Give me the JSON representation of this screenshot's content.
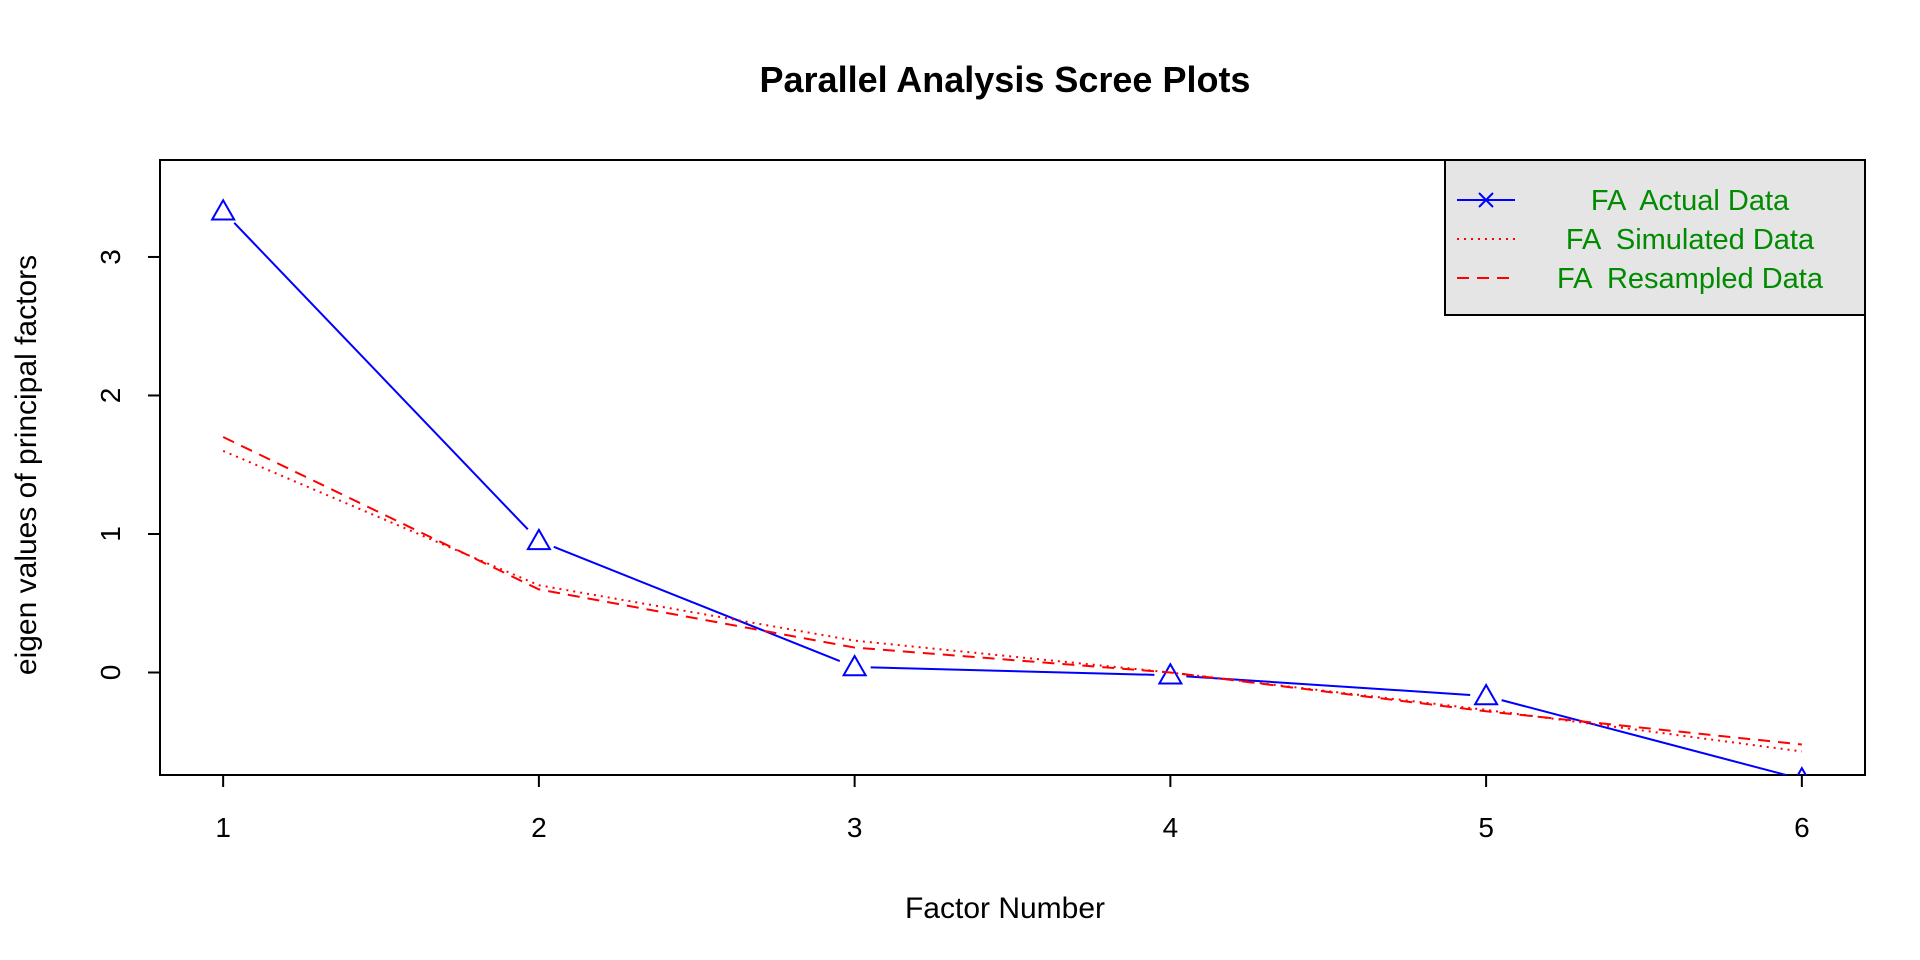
{
  "chart_data": {
    "type": "line",
    "title": "Parallel Analysis Scree Plots",
    "xlabel": "Factor Number",
    "ylabel": "eigen values of principal factors",
    "xlim": [
      0.8,
      6.2
    ],
    "ylim": [
      -0.74,
      3.7
    ],
    "x": [
      1,
      2,
      3,
      4,
      5,
      6
    ],
    "x_ticks": [
      "1",
      "2",
      "3",
      "4",
      "5",
      "6"
    ],
    "y_ticks": [
      "0",
      "1",
      "2",
      "3"
    ],
    "y_tick_values": [
      0,
      1,
      2,
      3
    ],
    "grid": false,
    "legend_position": "top-right",
    "legend_background": "#e5e5e5",
    "series": [
      {
        "name": "FA  Actual Data",
        "values": [
          3.33,
          0.95,
          0.04,
          -0.02,
          -0.17,
          -0.77
        ],
        "color": "#0000ff",
        "line": "solid",
        "marker": "triangle"
      },
      {
        "name": "FA  Simulated Data",
        "values": [
          1.6,
          0.63,
          0.23,
          0.0,
          -0.27,
          -0.57
        ],
        "color": "#ff0000",
        "line": "dotted",
        "marker": "none"
      },
      {
        "name": "FA  Resampled Data",
        "values": [
          1.7,
          0.6,
          0.18,
          0.0,
          -0.28,
          -0.52
        ],
        "color": "#ff0000",
        "line": "dashed",
        "marker": "none"
      }
    ],
    "legend_text_color": "#008b00"
  }
}
